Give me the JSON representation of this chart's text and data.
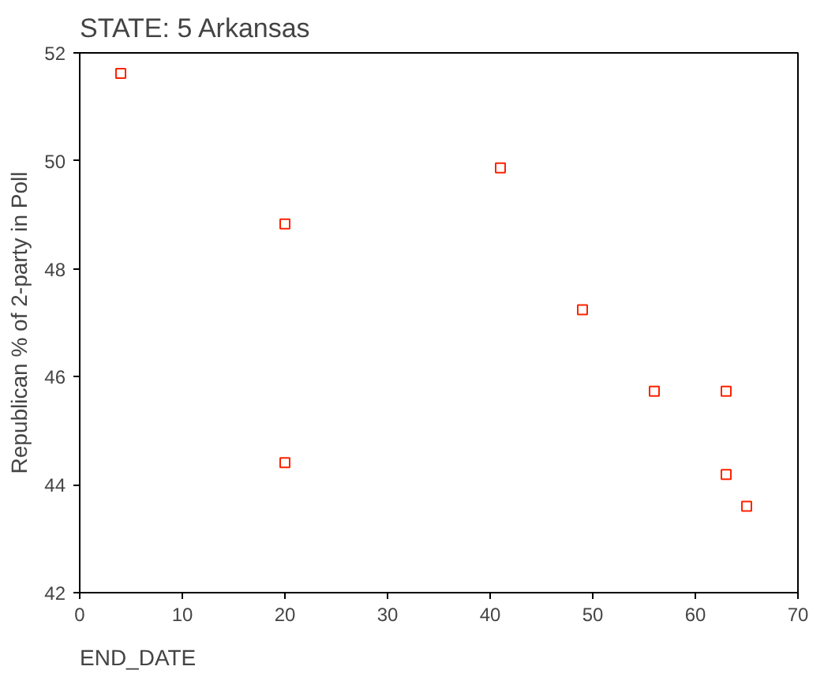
{
  "chart_data": {
    "type": "scatter",
    "title": "STATE:       5   Arkansas",
    "xlabel": "END_DATE",
    "ylabel": "Republican % of 2-party in Poll",
    "x": [
      4,
      20,
      20,
      41,
      49,
      56,
      63,
      63,
      65
    ],
    "series": [
      {
        "color": "#ff2200",
        "values": [
          51.62,
          48.83,
          44.41,
          49.87,
          47.24,
          45.73,
          45.73,
          44.19,
          43.6
        ]
      }
    ],
    "xlim": [
      0,
      70
    ],
    "ylim": [
      42,
      52
    ],
    "xticks": [
      0,
      10,
      20,
      30,
      40,
      50,
      60,
      70
    ],
    "yticks": [
      42,
      44,
      46,
      48,
      50,
      52
    ],
    "grid": false,
    "marker": "square"
  }
}
